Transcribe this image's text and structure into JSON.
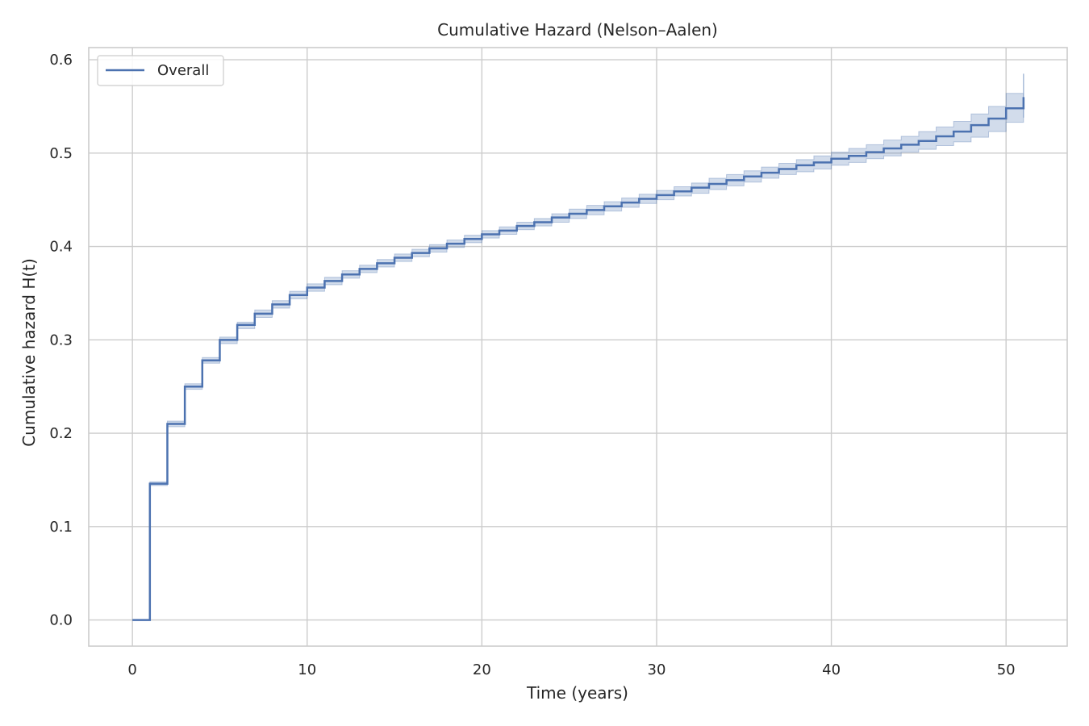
{
  "chart_data": {
    "type": "line",
    "title": "Cumulative Hazard (Nelson–Aalen)",
    "xlabel": "Time (years)",
    "ylabel": "Cumulative hazard H(t)",
    "xlim": [
      -2.5,
      53.5
    ],
    "ylim": [
      -0.028,
      0.613
    ],
    "xticks": [
      0,
      10,
      20,
      30,
      40,
      50
    ],
    "xtick_labels": [
      "0",
      "10",
      "20",
      "30",
      "40",
      "50"
    ],
    "yticks": [
      0.0,
      0.1,
      0.2,
      0.3,
      0.4,
      0.5,
      0.6
    ],
    "ytick_labels": [
      "0.0",
      "0.1",
      "0.2",
      "0.3",
      "0.4",
      "0.5",
      "0.6"
    ],
    "grid": true,
    "legend_position": "top-left",
    "step": true,
    "series": [
      {
        "name": "Overall",
        "color": "#4c72b0",
        "x": [
          0,
          1,
          2,
          3,
          4,
          5,
          6,
          7,
          8,
          9,
          10,
          11,
          12,
          13,
          14,
          15,
          16,
          17,
          18,
          19,
          20,
          21,
          22,
          23,
          24,
          25,
          26,
          27,
          28,
          29,
          30,
          31,
          32,
          33,
          34,
          35,
          36,
          37,
          38,
          39,
          40,
          41,
          42,
          43,
          44,
          45,
          46,
          47,
          48,
          49,
          50,
          51
        ],
        "y": [
          0.0,
          0.146,
          0.21,
          0.25,
          0.278,
          0.3,
          0.316,
          0.328,
          0.338,
          0.348,
          0.356,
          0.363,
          0.37,
          0.376,
          0.382,
          0.388,
          0.393,
          0.398,
          0.403,
          0.408,
          0.413,
          0.417,
          0.422,
          0.426,
          0.431,
          0.435,
          0.439,
          0.443,
          0.447,
          0.451,
          0.455,
          0.459,
          0.463,
          0.467,
          0.471,
          0.475,
          0.479,
          0.483,
          0.487,
          0.49,
          0.494,
          0.497,
          0.501,
          0.505,
          0.509,
          0.513,
          0.518,
          0.523,
          0.53,
          0.537,
          0.548,
          0.56
        ],
        "ci_lower": [
          0.0,
          0.144,
          0.207,
          0.247,
          0.275,
          0.296,
          0.312,
          0.324,
          0.334,
          0.344,
          0.352,
          0.359,
          0.366,
          0.372,
          0.378,
          0.384,
          0.389,
          0.394,
          0.399,
          0.404,
          0.409,
          0.413,
          0.418,
          0.422,
          0.426,
          0.43,
          0.434,
          0.438,
          0.442,
          0.446,
          0.45,
          0.454,
          0.457,
          0.461,
          0.465,
          0.469,
          0.473,
          0.477,
          0.48,
          0.483,
          0.487,
          0.49,
          0.494,
          0.497,
          0.501,
          0.504,
          0.508,
          0.512,
          0.517,
          0.523,
          0.533,
          0.538
        ],
        "ci_upper": [
          0.0,
          0.148,
          0.213,
          0.253,
          0.281,
          0.303,
          0.319,
          0.332,
          0.342,
          0.352,
          0.36,
          0.367,
          0.374,
          0.38,
          0.386,
          0.392,
          0.397,
          0.402,
          0.407,
          0.412,
          0.417,
          0.421,
          0.426,
          0.43,
          0.435,
          0.44,
          0.444,
          0.448,
          0.452,
          0.456,
          0.46,
          0.464,
          0.468,
          0.473,
          0.477,
          0.481,
          0.485,
          0.489,
          0.493,
          0.497,
          0.501,
          0.505,
          0.509,
          0.514,
          0.518,
          0.523,
          0.528,
          0.534,
          0.542,
          0.55,
          0.564,
          0.585
        ]
      }
    ]
  }
}
